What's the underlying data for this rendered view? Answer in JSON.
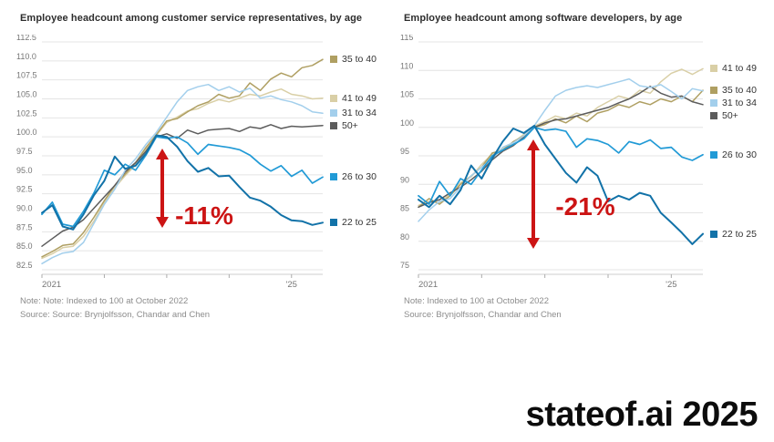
{
  "page": {
    "watermark": "stateof.ai 2025"
  },
  "annotation_color": "#cc1414",
  "chart_data": [
    {
      "type": "line",
      "title": "Employee headcount among customer service representatives, by age",
      "note": "Note: Note: Indexed to 100 at October 2022",
      "source": "Source: Source: Brynjolfsson, Chandar and Chen",
      "annotation": {
        "label": "-11%",
        "color": "#cc1414"
      },
      "x_start": "2021-01",
      "x_step_months": 2,
      "x_total_months": 54,
      "x_ticks": [
        {
          "m": 0,
          "label": "2021"
        },
        {
          "m": 12
        },
        {
          "m": 24
        },
        {
          "m": 36
        },
        {
          "m": 48,
          "label": "'25"
        }
      ],
      "ylim": [
        82.5,
        112.5
      ],
      "y_tick_labels": [
        "112.5",
        "110.0",
        "107.5",
        "105.0",
        "102.5",
        "100.0",
        "97.5",
        "95.0",
        "92.5",
        "90.0",
        "87.5",
        "85.0",
        "82.5"
      ],
      "grid": true,
      "legend_position": "right",
      "legend": [
        "35 to 40",
        "41 to 49",
        "31 to 34",
        "50+",
        "26 to 30",
        "22 to 25"
      ],
      "series": [
        {
          "name": "41 to 49",
          "color": "#d9cfa6",
          "values": [
            84.0,
            84.6,
            85.4,
            85.6,
            86.9,
            88.9,
            91.3,
            93.3,
            94.9,
            96.3,
            98.4,
            100.2,
            101.9,
            102.6,
            103.4,
            103.7,
            104.4,
            104.9,
            104.6,
            105.1,
            105.6,
            105.4,
            105.9,
            106.3,
            105.6,
            105.4,
            105.0,
            105.1
          ]
        },
        {
          "name": "35 to 40",
          "color": "#af9f62",
          "values": [
            84.2,
            84.9,
            85.7,
            85.9,
            87.4,
            89.4,
            91.6,
            93.6,
            95.1,
            96.6,
            98.6,
            100.3,
            102.1,
            102.4,
            103.3,
            104.1,
            104.6,
            105.6,
            105.1,
            105.4,
            107.1,
            106.1,
            107.6,
            108.4,
            107.9,
            109.1,
            109.4,
            110.2
          ]
        },
        {
          "name": "50+",
          "color": "#5c5c5c",
          "values": [
            85.6,
            86.6,
            87.6,
            88.1,
            89.1,
            90.6,
            92.1,
            93.6,
            95.4,
            96.6,
            98.1,
            100.0,
            100.4,
            99.8,
            100.9,
            100.4,
            100.9,
            101.0,
            101.1,
            100.7,
            101.3,
            101.1,
            101.6,
            101.1,
            101.4,
            101.3,
            101.4,
            101.5
          ]
        },
        {
          "name": "31 to 34",
          "color": "#a3cfec",
          "values": [
            83.3,
            84.1,
            84.7,
            84.9,
            86.1,
            88.6,
            91.1,
            93.1,
            95.6,
            97.1,
            99.0,
            100.6,
            102.6,
            104.6,
            106.1,
            106.6,
            106.9,
            106.1,
            106.6,
            105.9,
            106.4,
            105.1,
            105.4,
            104.9,
            104.6,
            104.1,
            103.3,
            103.1
          ]
        },
        {
          "name": "26 to 30",
          "color": "#219ad6",
          "values": [
            89.8,
            91.4,
            88.5,
            88.2,
            90.2,
            92.6,
            95.6,
            95.0,
            96.4,
            95.6,
            97.6,
            100.0,
            99.8,
            100.0,
            99.2,
            97.7,
            99.0,
            98.8,
            98.6,
            98.3,
            97.6,
            96.4,
            95.5,
            96.2,
            94.8,
            95.6,
            93.9,
            94.7
          ]
        },
        {
          "name": "22 to 25",
          "color": "#1272a8",
          "values": [
            90.0,
            91.0,
            88.2,
            87.8,
            89.8,
            92.3,
            94.2,
            97.4,
            95.8,
            96.2,
            97.8,
            100.2,
            100.0,
            98.7,
            96.8,
            95.4,
            95.9,
            94.8,
            94.9,
            93.4,
            92.0,
            91.6,
            90.8,
            89.7,
            89.0,
            88.9,
            88.4,
            88.7
          ]
        }
      ]
    },
    {
      "type": "line",
      "title": "Employee headcount among software developers, by age",
      "note": "Note: Indexed to 100 at October 2022",
      "source": "Source: Brynjolfsson, Chandar and Chen",
      "annotation": {
        "label": "-21%",
        "color": "#cc1414"
      },
      "x_start": "2021-01",
      "x_step_months": 2,
      "x_total_months": 54,
      "x_ticks": [
        {
          "m": 0,
          "label": "2021"
        },
        {
          "m": 12
        },
        {
          "m": 24
        },
        {
          "m": 36
        },
        {
          "m": 48,
          "label": "'25"
        }
      ],
      "ylim": [
        75,
        115
      ],
      "y_tick_labels": [
        "115",
        "110",
        "105",
        "100",
        "95",
        "90",
        "85",
        "80",
        "75"
      ],
      "grid": true,
      "legend_position": "right",
      "legend": [
        "41 to 49",
        "35 to 40",
        "31 to 34",
        "50+",
        "26 to 30",
        "22 to 25"
      ],
      "series": [
        {
          "name": "41 to 49",
          "color": "#d9cfa6",
          "values": [
            86.3,
            87.0,
            86.8,
            88.3,
            90.3,
            91.3,
            93.5,
            95.3,
            96.3,
            97.3,
            98.8,
            100.2,
            101.0,
            102.0,
            101.5,
            102.5,
            102.0,
            103.5,
            104.5,
            105.5,
            105.0,
            106.5,
            106.0,
            108.0,
            109.5,
            110.2,
            109.3,
            110.3
          ]
        },
        {
          "name": "35 to 40",
          "color": "#af9f62",
          "values": [
            86.0,
            87.5,
            86.5,
            88.0,
            90.0,
            91.5,
            93.0,
            95.5,
            96.0,
            97.5,
            98.5,
            100.0,
            100.5,
            101.5,
            100.8,
            102.0,
            101.0,
            102.5,
            103.0,
            104.0,
            103.5,
            104.5,
            104.0,
            105.0,
            104.5,
            105.5,
            104.5,
            106.5
          ]
        },
        {
          "name": "50+",
          "color": "#5c5c5c",
          "values": [
            86.0,
            86.8,
            87.3,
            88.5,
            89.5,
            90.8,
            92.3,
            94.3,
            95.8,
            96.8,
            98.3,
            100.0,
            100.8,
            101.3,
            101.5,
            102.0,
            102.5,
            103.0,
            103.5,
            104.3,
            105.0,
            106.0,
            107.2,
            106.0,
            105.3,
            105.5,
            104.5,
            104.0
          ]
        },
        {
          "name": "31 to 34",
          "color": "#a3cfec",
          "values": [
            83.5,
            85.5,
            87.0,
            87.5,
            89.5,
            91.5,
            93.0,
            94.5,
            96.5,
            97.3,
            98.5,
            100.3,
            103.0,
            105.5,
            106.5,
            107.0,
            107.3,
            107.0,
            107.5,
            108.0,
            108.5,
            107.3,
            107.0,
            107.5,
            106.3,
            105.0,
            106.8,
            106.4
          ]
        },
        {
          "name": "26 to 30",
          "color": "#219ad6",
          "values": [
            88.0,
            86.5,
            90.5,
            88.0,
            91.0,
            90.0,
            92.5,
            95.0,
            96.0,
            97.0,
            98.0,
            100.0,
            99.5,
            99.7,
            99.3,
            96.5,
            98.0,
            97.7,
            97.0,
            95.5,
            97.5,
            97.0,
            97.8,
            96.3,
            96.5,
            94.8,
            94.2,
            95.2
          ]
        },
        {
          "name": "22 to 25",
          "color": "#1272a8",
          "values": [
            87.3,
            86.0,
            88.0,
            86.5,
            89.0,
            93.3,
            91.0,
            94.5,
            97.5,
            99.8,
            99.0,
            100.3,
            97.0,
            94.5,
            92.0,
            90.3,
            93.0,
            91.5,
            87.0,
            88.0,
            87.3,
            88.5,
            88.0,
            85.0,
            83.3,
            81.5,
            79.5,
            81.3
          ]
        }
      ]
    }
  ]
}
